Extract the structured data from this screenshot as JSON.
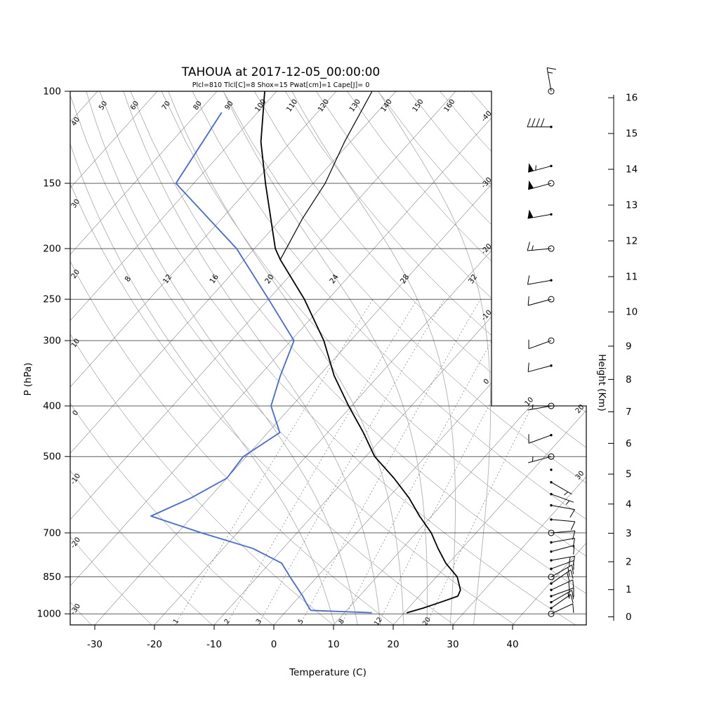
{
  "title": "TAHOUA at 2017-12-05_00:00:00",
  "subtitle": "Plcl=810 Tlcl[C]=8 Shox=15 Pwat[cm]=1 Cape[J]= 0",
  "colors": {
    "temperature": "#000000",
    "dewpoint": "#4169e1",
    "parcel": "#000000",
    "subtitle": "#c45a1c",
    "isotherm": "#3d3d3d",
    "dry_adiabat": "#555555",
    "moist_adiabat": "#b0b0b0",
    "mixing_ratio": "#666666",
    "frame": "#000000"
  },
  "axes": {
    "pressure_label": "P (hPa)",
    "temperature_label": "Temperature (C)",
    "height_label": "Height (Km)",
    "pressure_ticks": [
      100,
      150,
      200,
      250,
      300,
      400,
      500,
      700,
      850,
      1000
    ],
    "temperature_ticks": [
      -30,
      -20,
      -10,
      0,
      10,
      20,
      30,
      40
    ],
    "height_ticks": [
      0,
      1,
      2,
      3,
      4,
      5,
      6,
      7,
      8,
      9,
      10,
      11,
      12,
      13,
      14,
      15,
      16
    ]
  },
  "grid": {
    "isotherm_labels": [
      -40,
      -30,
      -20,
      -10,
      0,
      10,
      20,
      30
    ],
    "dry_adiabat_labels": [
      -30,
      -20,
      -10,
      0,
      10,
      20,
      30,
      40,
      50,
      60,
      70,
      80,
      90,
      100,
      110,
      120,
      130,
      140,
      150,
      160
    ],
    "moist_adiabat_labels": [
      8,
      12,
      16,
      20,
      24,
      28,
      32
    ],
    "mixing_ratio_labels": [
      1,
      2,
      3,
      5,
      8,
      12,
      20
    ]
  },
  "chart_data": {
    "type": "line",
    "subtype": "skewT-logP-sounding",
    "station": "TAHOUA",
    "datetime": "2017-12-05_00:00:00",
    "indices": {
      "Plcl_hPa": 810,
      "Tlcl_C": 8,
      "Shox": 15,
      "Pwat_cm": 1,
      "Cape_J": 0
    },
    "pressure_range_hPa": [
      100,
      1050
    ],
    "temperature_axis_range_C": [
      -30,
      40
    ],
    "height_axis_range_km": [
      0,
      16
    ],
    "series": [
      {
        "name": "temperature",
        "color": "#000000",
        "width": 1.8,
        "points": [
          [
            995,
            20.5
          ],
          [
            975,
            22.5
          ],
          [
            950,
            24.5
          ],
          [
            925,
            26.5
          ],
          [
            900,
            26.0
          ],
          [
            850,
            23.5
          ],
          [
            800,
            19.5
          ],
          [
            750,
            16.0
          ],
          [
            700,
            12.5
          ],
          [
            650,
            8.0
          ],
          [
            600,
            3.5
          ],
          [
            550,
            -2.0
          ],
          [
            500,
            -8.5
          ],
          [
            450,
            -14.0
          ],
          [
            400,
            -20.5
          ],
          [
            350,
            -27.5
          ],
          [
            300,
            -34.5
          ],
          [
            250,
            -44.0
          ],
          [
            210,
            -54.0
          ],
          [
            200,
            -56.5
          ],
          [
            150,
            -68.0
          ],
          [
            125,
            -75.0
          ],
          [
            100,
            -82.0
          ]
        ]
      },
      {
        "name": "dewpoint",
        "color": "#4169e1",
        "width": 1.8,
        "points": [
          [
            995,
            14.5
          ],
          [
            985,
            4.0
          ],
          [
            960,
            2.5
          ],
          [
            925,
            0.5
          ],
          [
            850,
            -4.5
          ],
          [
            800,
            -8.0
          ],
          [
            750,
            -15.0
          ],
          [
            700,
            -26.0
          ],
          [
            650,
            -37.0
          ],
          [
            600,
            -33.0
          ],
          [
            550,
            -30.0
          ],
          [
            500,
            -30.5
          ],
          [
            450,
            -28.0
          ],
          [
            400,
            -33.5
          ],
          [
            350,
            -36.5
          ],
          [
            300,
            -39.5
          ],
          [
            250,
            -50.0
          ],
          [
            200,
            -63.0
          ],
          [
            150,
            -83.0
          ],
          [
            110,
            -86.0
          ]
        ]
      },
      {
        "name": "parcel",
        "color": "#000000",
        "width": 1.2,
        "points": [
          [
            210,
            -54.0
          ],
          [
            175,
            -56.5
          ],
          [
            150,
            -58.0
          ],
          [
            125,
            -61.0
          ],
          [
            100,
            -64.0
          ]
        ]
      }
    ],
    "winds": [
      {
        "p": 100,
        "dir": 350,
        "spd": 15,
        "m": "circle"
      },
      {
        "p": 117,
        "dir": 270,
        "spd": 40,
        "m": "dot"
      },
      {
        "p": 139,
        "dir": 255,
        "spd": 55,
        "m": "dot"
      },
      {
        "p": 150,
        "dir": 255,
        "spd": 50,
        "m": "circle"
      },
      {
        "p": 172,
        "dir": 260,
        "spd": 50,
        "m": "dot"
      },
      {
        "p": 200,
        "dir": 265,
        "spd": 15,
        "m": "circle"
      },
      {
        "p": 230,
        "dir": 260,
        "spd": 10,
        "m": "dot"
      },
      {
        "p": 250,
        "dir": 255,
        "spd": 10,
        "m": "circle"
      },
      {
        "p": 300,
        "dir": 250,
        "spd": 10,
        "m": "circle"
      },
      {
        "p": 335,
        "dir": 255,
        "spd": 10,
        "m": "dot"
      },
      {
        "p": 400,
        "dir": 260,
        "spd": 5,
        "m": "circle"
      },
      {
        "p": 455,
        "dir": 250,
        "spd": 10,
        "m": "dot"
      },
      {
        "p": 500,
        "dir": 255,
        "spd": 5,
        "m": "circle"
      },
      {
        "p": 530,
        "dir": 200,
        "spd": 0,
        "m": "dot"
      },
      {
        "p": 560,
        "dir": 120,
        "spd": 5,
        "m": "dot"
      },
      {
        "p": 590,
        "dir": 110,
        "spd": 5,
        "m": "dot"
      },
      {
        "p": 620,
        "dir": 100,
        "spd": 8,
        "m": "dot"
      },
      {
        "p": 660,
        "dir": 95,
        "spd": 8,
        "m": "dot"
      },
      {
        "p": 700,
        "dir": 85,
        "spd": 10,
        "m": "circle"
      },
      {
        "p": 730,
        "dir": 80,
        "spd": 12,
        "m": "dot"
      },
      {
        "p": 760,
        "dir": 75,
        "spd": 12,
        "m": "dot"
      },
      {
        "p": 790,
        "dir": 80,
        "spd": 15,
        "m": "dot"
      },
      {
        "p": 820,
        "dir": 70,
        "spd": 15,
        "m": "dot"
      },
      {
        "p": 850,
        "dir": 60,
        "spd": 18,
        "m": "circle"
      },
      {
        "p": 875,
        "dir": 55,
        "spd": 18,
        "m": "dot"
      },
      {
        "p": 900,
        "dir": 65,
        "spd": 20,
        "m": "dot"
      },
      {
        "p": 925,
        "dir": 70,
        "spd": 18,
        "m": "dot"
      },
      {
        "p": 950,
        "dir": 60,
        "spd": 15,
        "m": "dot"
      },
      {
        "p": 975,
        "dir": 55,
        "spd": 12,
        "m": "dot"
      },
      {
        "p": 1000,
        "dir": 65,
        "spd": 10,
        "m": "circle"
      }
    ]
  }
}
